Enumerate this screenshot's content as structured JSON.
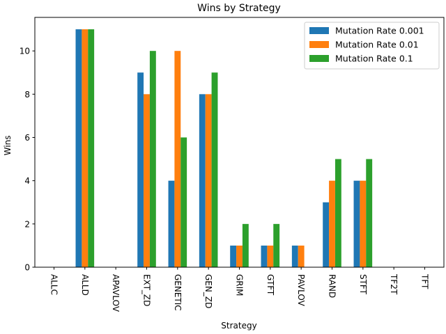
{
  "chart_data": {
    "type": "bar",
    "title": "Wins by Strategy",
    "xlabel": "Strategy",
    "ylabel": "Wins",
    "categories": [
      "ALLC",
      "ALLD",
      "APAVLOV",
      "EXT_ZD",
      "GENETIC",
      "GEN_ZD",
      "GRIM",
      "GTFT",
      "PAVLOV",
      "RAND",
      "STFT",
      "TF2T",
      "TFT"
    ],
    "series": [
      {
        "name": "Mutation Rate 0.001",
        "color": "#1f77b4",
        "values": [
          0,
          11,
          0,
          9,
          4,
          8,
          1,
          1,
          1,
          3,
          4,
          0,
          0
        ]
      },
      {
        "name": "Mutation Rate 0.01",
        "color": "#ff7f0e",
        "values": [
          0,
          11,
          0,
          8,
          10,
          8,
          1,
          1,
          1,
          4,
          4,
          0,
          0
        ]
      },
      {
        "name": "Mutation Rate 0.1",
        "color": "#2ca02c",
        "values": [
          0,
          11,
          0,
          10,
          6,
          9,
          2,
          2,
          0,
          5,
          5,
          0,
          0
        ]
      }
    ],
    "ylim": [
      0,
      11.55
    ],
    "yticks": [
      0,
      2,
      4,
      6,
      8,
      10
    ],
    "grid": false,
    "legend_position": "top-right"
  }
}
